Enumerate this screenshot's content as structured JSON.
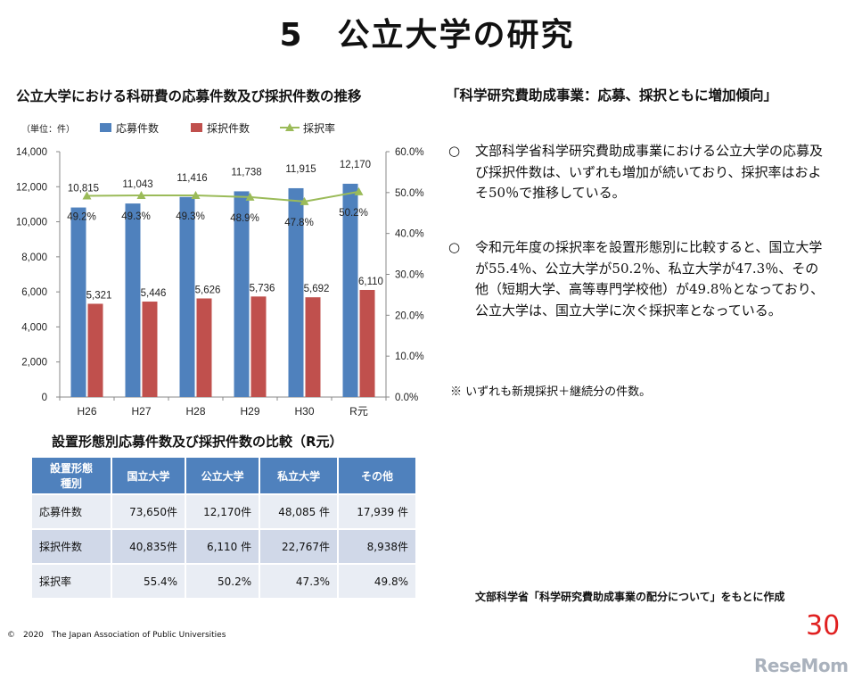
{
  "slide_title": "5　公立大学の研究",
  "chart_title": "公立大学における科研費の応募件数及び採択件数の推移",
  "chart_data": {
    "type": "bar",
    "unit_label": "（単位：件）",
    "categories": [
      "H26",
      "H27",
      "H28",
      "H29",
      "H30",
      "R元"
    ],
    "series": [
      {
        "name": "応募件数",
        "type": "bar",
        "axis": "left",
        "color": "#4f81bd",
        "values": [
          10815,
          11043,
          11416,
          11738,
          11915,
          12170
        ],
        "labels": [
          "10,815",
          "11,043",
          "11,416",
          "11,738",
          "11,915",
          "12,170"
        ]
      },
      {
        "name": "採択件数",
        "type": "bar",
        "axis": "left",
        "color": "#c0504d",
        "values": [
          5321,
          5446,
          5626,
          5736,
          5692,
          6110
        ],
        "labels": [
          "5,321",
          "5,446",
          "5,626",
          "5,736",
          "5,692",
          "6,110"
        ]
      },
      {
        "name": "採択率",
        "type": "line",
        "axis": "right",
        "color": "#9bbb59",
        "values": [
          49.2,
          49.3,
          49.3,
          48.9,
          47.8,
          50.2
        ],
        "labels": [
          "49.2%",
          "49.3%",
          "49.3%",
          "48.9%",
          "47.8%",
          "50.2%"
        ]
      }
    ],
    "y_left": {
      "min": 0,
      "max": 14000,
      "ticks": [
        0,
        2000,
        4000,
        6000,
        8000,
        10000,
        12000,
        14000
      ],
      "tick_labels": [
        "0",
        "2,000",
        "4,000",
        "6,000",
        "8,000",
        "10,000",
        "12,000",
        "14,000"
      ]
    },
    "y_right": {
      "min": 0,
      "max": 60,
      "ticks": [
        0,
        10,
        20,
        30,
        40,
        50,
        60
      ],
      "tick_labels": [
        "0.0%",
        "10.0%",
        "20.0%",
        "30.0%",
        "40.0%",
        "50.0%",
        "60.0%"
      ]
    },
    "legend_position": "top",
    "grid": false
  },
  "table": {
    "title": "設置形態別応募件数及び採択件数の比較（R元）",
    "header_first_line1": "設置形態",
    "header_first_line2": "種別",
    "columns": [
      "国立大学",
      "公立大学",
      "私立大学",
      "その他"
    ],
    "rows": [
      {
        "label": "応募件数",
        "cells": [
          "73,650件",
          "12,170件",
          "48,085 件",
          "17,939 件"
        ]
      },
      {
        "label": "採択件数",
        "cells": [
          "40,835件",
          "6,110 件",
          "22,767件",
          "8,938件"
        ]
      },
      {
        "label": "採択率",
        "cells": [
          "55.4%",
          "50.2%",
          "47.3%",
          "49.8%"
        ]
      }
    ]
  },
  "right_panel": {
    "heading": "「科学研究費助成事業：応募、採択ともに増加傾向」",
    "bullet_mark": "○",
    "bullets": [
      "文部科学省科学研究費助成事業における公立大学の応募及び採択件数は、いずれも増加が続いており、採択率はおよそ50％で推移している。",
      "令和元年度の採択率を設置形態別に比較すると、国立大学が55.4％、公立大学が50.2％、私立大学が47.3％、その他（短期大学、高等専門学校他）が49.8％となっており、公立大学は、国立大学に次ぐ採択率となっている。"
    ],
    "note": "※ いずれも新規採択＋継続分の件数。"
  },
  "source": "文部科学省「科学研究費助成事業の配分について」をもとに作成",
  "copyright": "©　2020　The Japan Association of Public Universities",
  "page_number": "30",
  "logo": "ReseMom"
}
